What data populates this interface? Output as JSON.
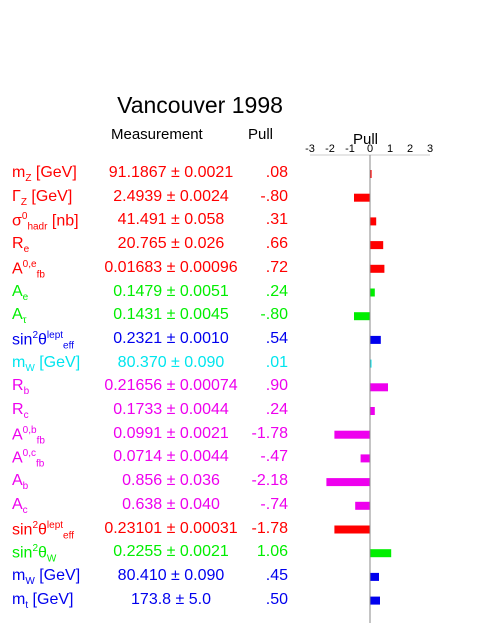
{
  "title": "Vancouver 1998",
  "headers": {
    "measurement": "Measurement",
    "pull": "Pull",
    "pull_axis": "Pull"
  },
  "colors": {
    "red": "#ff0000",
    "green": "#00ee00",
    "blue": "#0000ee",
    "cyan": "#00e5ee",
    "magenta": "#ee00ee"
  },
  "chart_data": {
    "type": "bar",
    "orientation": "horizontal",
    "title": "Vancouver 1998",
    "xlabel": "Pull",
    "xlim": [
      -3,
      3
    ],
    "xticks": [
      "-3",
      "-2",
      "-1",
      "0",
      "1",
      "2",
      "3"
    ],
    "rows": [
      {
        "name": "mZ [GeV]",
        "measurement": "91.1867 ± 0.0021",
        "pull_label": ".08",
        "pull": 0.08,
        "color": "#ff0000"
      },
      {
        "name": "ΓZ [GeV]",
        "measurement": "2.4939 ± 0.0024",
        "pull_label": "-.80",
        "pull": -0.8,
        "color": "#ff0000"
      },
      {
        "name": "σ0hadr [nb]",
        "measurement": "41.491 ± 0.058",
        "pull_label": ".31",
        "pull": 0.31,
        "color": "#ff0000"
      },
      {
        "name": "Re",
        "measurement": "20.765 ± 0.026",
        "pull_label": ".66",
        "pull": 0.66,
        "color": "#ff0000"
      },
      {
        "name": "A0,efb",
        "measurement": "0.01683 ± 0.00096",
        "pull_label": ".72",
        "pull": 0.72,
        "color": "#ff0000"
      },
      {
        "name": "Ae",
        "measurement": "0.1479 ± 0.0051",
        "pull_label": ".24",
        "pull": 0.24,
        "color": "#00ee00"
      },
      {
        "name": "Aτ",
        "measurement": "0.1431 ± 0.0045",
        "pull_label": "-.80",
        "pull": -0.8,
        "color": "#00ee00"
      },
      {
        "name": "sin2θlepteff",
        "measurement": "0.2321 ± 0.0010",
        "pull_label": ".54",
        "pull": 0.54,
        "color": "#0000ee"
      },
      {
        "name": "mW [GeV]",
        "measurement": "80.370 ± 0.090",
        "pull_label": ".01",
        "pull": 0.01,
        "color": "#00e5ee"
      },
      {
        "name": "Rb",
        "measurement": "0.21656 ± 0.00074",
        "pull_label": ".90",
        "pull": 0.9,
        "color": "#ee00ee"
      },
      {
        "name": "Rc",
        "measurement": "0.1733 ± 0.0044",
        "pull_label": ".24",
        "pull": 0.24,
        "color": "#ee00ee"
      },
      {
        "name": "A0,bfb",
        "measurement": "0.0991 ± 0.0021",
        "pull_label": "-1.78",
        "pull": -1.78,
        "color": "#ee00ee"
      },
      {
        "name": "A0,cfb",
        "measurement": "0.0714 ± 0.0044",
        "pull_label": "-.47",
        "pull": -0.47,
        "color": "#ee00ee"
      },
      {
        "name": "Ab",
        "measurement": "0.856 ± 0.036",
        "pull_label": "-2.18",
        "pull": -2.18,
        "color": "#ee00ee"
      },
      {
        "name": "Ac",
        "measurement": "0.638 ± 0.040",
        "pull_label": "-.74",
        "pull": -0.74,
        "color": "#ee00ee"
      },
      {
        "name": "sin2θlepteff",
        "measurement": "0.23101 ± 0.00031",
        "pull_label": "-1.78",
        "pull": -1.78,
        "color": "#ff0000"
      },
      {
        "name": "sin2θW",
        "measurement": "0.2255 ± 0.0021",
        "pull_label": "1.06",
        "pull": 1.06,
        "color": "#00ee00"
      },
      {
        "name": "mW [GeV]",
        "measurement": "80.410 ± 0.090",
        "pull_label": ".45",
        "pull": 0.45,
        "color": "#0000ee"
      },
      {
        "name": "mt [GeV]",
        "measurement": "173.8 ± 5.0",
        "pull_label": ".50",
        "pull": 0.5,
        "color": "#0000ee"
      }
    ]
  }
}
